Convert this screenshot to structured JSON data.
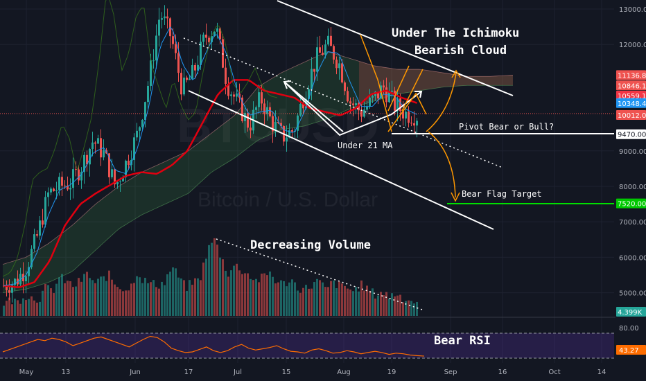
{
  "chart_data": {
    "type": "candlestick",
    "symbol_watermark": {
      "ticker": "BTCUSD",
      "name": "Bitcoin / U.S. Dollar"
    },
    "price_axis": {
      "ticks": [
        "13000.00",
        "12000.00",
        "9000.00",
        "8000.00",
        "7000.00",
        "6000.00",
        "5000.00"
      ],
      "ylim": [
        4600,
        13200
      ]
    },
    "time_axis": {
      "ticks": [
        "May",
        "13",
        "Jun",
        "17",
        "Jul",
        "15",
        "Aug",
        "19",
        "Sep",
        "16",
        "Oct",
        "14"
      ]
    },
    "price_tags": [
      {
        "label": "11136.81",
        "value": 11136.81,
        "color": "#ef5350"
      },
      {
        "label": "10846.18",
        "value": 10846.18,
        "color": "#ef5350"
      },
      {
        "label": "10559.11",
        "value": 10559.11,
        "color": "#f23645"
      },
      {
        "label": "10348.49",
        "value": 10348.49,
        "color": "#2196f3"
      },
      {
        "label": "10012.06",
        "value": 10012.06,
        "color": "#ef5350"
      },
      {
        "label": "9470.00",
        "value": 9470,
        "color": "#ffffff"
      },
      {
        "label": "7520.00",
        "value": 7520,
        "color": "#00c800"
      }
    ],
    "volume_tag": "4.399K",
    "rsi": {
      "ticks": [
        "80.00"
      ],
      "current_label": "43.27",
      "current": 43.27
    },
    "annotations": {
      "cloud_title_1": "Under The Ichimoku",
      "cloud_title_2": "Bearish Cloud",
      "pivot": "Pivot Bear or Bull?",
      "under_ma": "Under 21 MA",
      "bear_flag": "Bear Flag Target",
      "volume": "Decreasing Volume",
      "rsi": "Bear RSI"
    },
    "levels": {
      "pivot": 9470,
      "bear_flag_target": 7520,
      "last_close": 10012.06
    },
    "ohlc_anchors": [
      5200,
      5300,
      5700,
      6600,
      7800,
      8000,
      8100,
      8600,
      9300,
      8900,
      8000,
      8700,
      9500,
      11000,
      12900,
      12200,
      10700,
      11200,
      12200,
      12500,
      10900,
      10300,
      9700,
      10500,
      9800,
      9400,
      9600,
      10700,
      11600,
      12000,
      11500,
      10400,
      10100,
      10400,
      10800,
      10300,
      10050,
      10000
    ],
    "sma21": [
      5200,
      5150,
      5300,
      5900,
      6900,
      7500,
      7800,
      8050,
      8300,
      8400,
      8350,
      8600,
      9000,
      9800,
      10600,
      11000,
      11000,
      10700,
      10600,
      10500,
      10200,
      10100,
      10000,
      10200,
      10600,
      10700,
      10500,
      10350
    ],
    "cloud_upper": [
      5800,
      6000,
      6400,
      6900,
      7500,
      8000,
      8400,
      8700,
      9000,
      9500,
      10000,
      10800,
      11200,
      11500,
      11800,
      11600,
      11400,
      11300,
      11300,
      11200,
      11100,
      11100,
      11136
    ],
    "cloud_lower": [
      5000,
      5100,
      5300,
      5600,
      6200,
      6800,
      7200,
      7500,
      7800,
      8400,
      8800,
      9300,
      9600,
      9700,
      9900,
      10200,
      10400,
      10600,
      10700,
      10800,
      10846,
      10846,
      10846
    ],
    "volume": [
      18,
      22,
      20,
      30,
      26,
      24,
      40,
      35,
      55,
      48,
      42,
      50,
      60,
      45,
      52,
      58,
      44,
      40,
      38,
      62,
      50,
      46,
      44,
      48,
      70,
      55,
      40,
      48,
      52,
      90,
      110,
      85,
      60,
      72,
      65,
      58,
      50,
      54,
      62,
      48,
      45,
      52,
      40,
      38,
      44,
      50,
      36,
      48,
      42,
      40,
      35,
      44,
      38,
      30,
      34,
      28,
      32,
      26,
      22,
      20
    ],
    "rsi_values": [
      50,
      54,
      58,
      62,
      66,
      70,
      68,
      72,
      70,
      66,
      60,
      64,
      68,
      72,
      74,
      70,
      66,
      62,
      58,
      64,
      70,
      75,
      73,
      66,
      56,
      52,
      49,
      50,
      54,
      58,
      52,
      49,
      52,
      58,
      62,
      56,
      53,
      55,
      57,
      60,
      55,
      51,
      50,
      48,
      53,
      55,
      52,
      48,
      49,
      52,
      50,
      47,
      49,
      51,
      49,
      46,
      48,
      47,
      45,
      44,
      43.27
    ]
  }
}
